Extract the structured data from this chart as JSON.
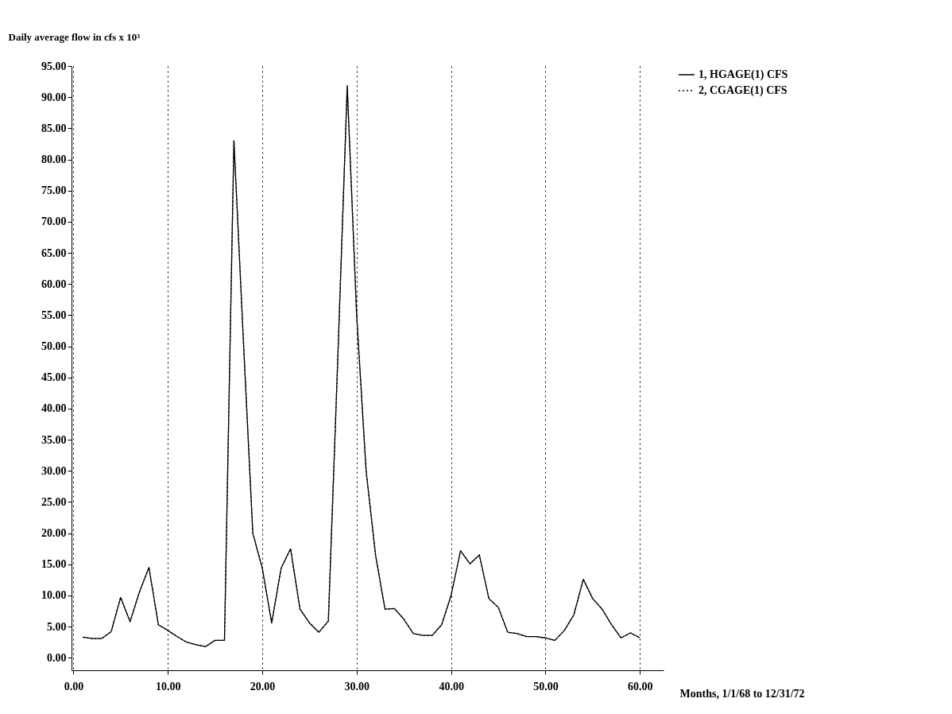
{
  "chart_data": {
    "type": "line",
    "ylabel": "Daily average flow in cfs x 10³",
    "xlabel": "Months, 1/1/68 to 12/31/72",
    "x": [
      1,
      2,
      3,
      4,
      5,
      6,
      7,
      8,
      9,
      10,
      11,
      12,
      13,
      14,
      15,
      16,
      17,
      18,
      19,
      20,
      21,
      22,
      23,
      24,
      25,
      26,
      27,
      28,
      29,
      30,
      31,
      32,
      33,
      34,
      35,
      36,
      37,
      38,
      39,
      40,
      41,
      42,
      43,
      44,
      45,
      46,
      47,
      48,
      49,
      50,
      51,
      52,
      53,
      54,
      55,
      56,
      57,
      58,
      59,
      60
    ],
    "series": [
      {
        "name": "1, HGAGE(1)        CFS",
        "color": "#000000",
        "line_style": "solid",
        "values": [
          3.3,
          3.1,
          3.1,
          4.2,
          9.7,
          5.8,
          10.6,
          14.5,
          5.3,
          4.4,
          3.4,
          2.5,
          2.1,
          1.8,
          2.8,
          2.8,
          83,
          51,
          20,
          14.4,
          5.6,
          14.4,
          17.5,
          7.8,
          5.6,
          4.1,
          5.9,
          48,
          91.8,
          55,
          30,
          16.5,
          7.8,
          7.9,
          6.2,
          3.9,
          3.6,
          3.6,
          5.3,
          10,
          17.2,
          15.1,
          16.5,
          9.5,
          8.1,
          4.1,
          3.9,
          3.4,
          3.4,
          3.2,
          2.8,
          4.4,
          6.9,
          12.6,
          9.5,
          7.8,
          5.3,
          3.2,
          4,
          3.2
        ]
      },
      {
        "name": "2, CGAGE(1)        CFS",
        "color": "#000000",
        "line_style": "dotted",
        "values": [
          3.3,
          3.1,
          3.1,
          4.2,
          9.7,
          5.8,
          10.6,
          14.5,
          5.3,
          4.4,
          3.4,
          2.5,
          2.1,
          1.8,
          2.8,
          2.8,
          83,
          51,
          20,
          14.4,
          5.6,
          14.4,
          17.5,
          7.8,
          5.6,
          4.1,
          5.9,
          48,
          91.8,
          55,
          30,
          16.5,
          7.8,
          7.9,
          6.2,
          3.9,
          3.6,
          3.6,
          5.3,
          10,
          17.2,
          15.1,
          16.5,
          9.5,
          8.1,
          4.1,
          3.9,
          3.4,
          3.4,
          3.2,
          2.8,
          4.4,
          6.9,
          12.6,
          9.5,
          7.8,
          5.3,
          3.2,
          4,
          3.2
        ]
      }
    ],
    "xlim": [
      -0.2,
      62.5
    ],
    "ylim": [
      -2,
      95
    ],
    "xticks": [
      {
        "value": 0,
        "label": "0.00"
      },
      {
        "value": 10,
        "label": "10.00"
      },
      {
        "value": 20,
        "label": "20.00"
      },
      {
        "value": 30,
        "label": "30.00"
      },
      {
        "value": 40,
        "label": "40.00"
      },
      {
        "value": 50,
        "label": "50.00"
      },
      {
        "value": 60,
        "label": "60.00"
      }
    ],
    "yticks": [
      {
        "value": 0,
        "label": "0.00"
      },
      {
        "value": 5,
        "label": "5.00"
      },
      {
        "value": 10,
        "label": "10.00"
      },
      {
        "value": 15,
        "label": "15.00"
      },
      {
        "value": 20,
        "label": "20.00"
      },
      {
        "value": 25,
        "label": "25.00"
      },
      {
        "value": 30,
        "label": "30.00"
      },
      {
        "value": 35,
        "label": "35.00"
      },
      {
        "value": 40,
        "label": "40.00"
      },
      {
        "value": 45,
        "label": "45.00"
      },
      {
        "value": 50,
        "label": "50.00"
      },
      {
        "value": 55,
        "label": "55.00"
      },
      {
        "value": 60,
        "label": "60.00"
      },
      {
        "value": 65,
        "label": "65.00"
      },
      {
        "value": 70,
        "label": "70.00"
      },
      {
        "value": 75,
        "label": "75.00"
      },
      {
        "value": 80,
        "label": "80.00"
      },
      {
        "value": 85,
        "label": "85.00"
      },
      {
        "value": 90,
        "label": "90.00"
      },
      {
        "value": 95,
        "label": "95.00"
      }
    ],
    "grid": "x",
    "legend": "top right",
    "marker": "none"
  }
}
